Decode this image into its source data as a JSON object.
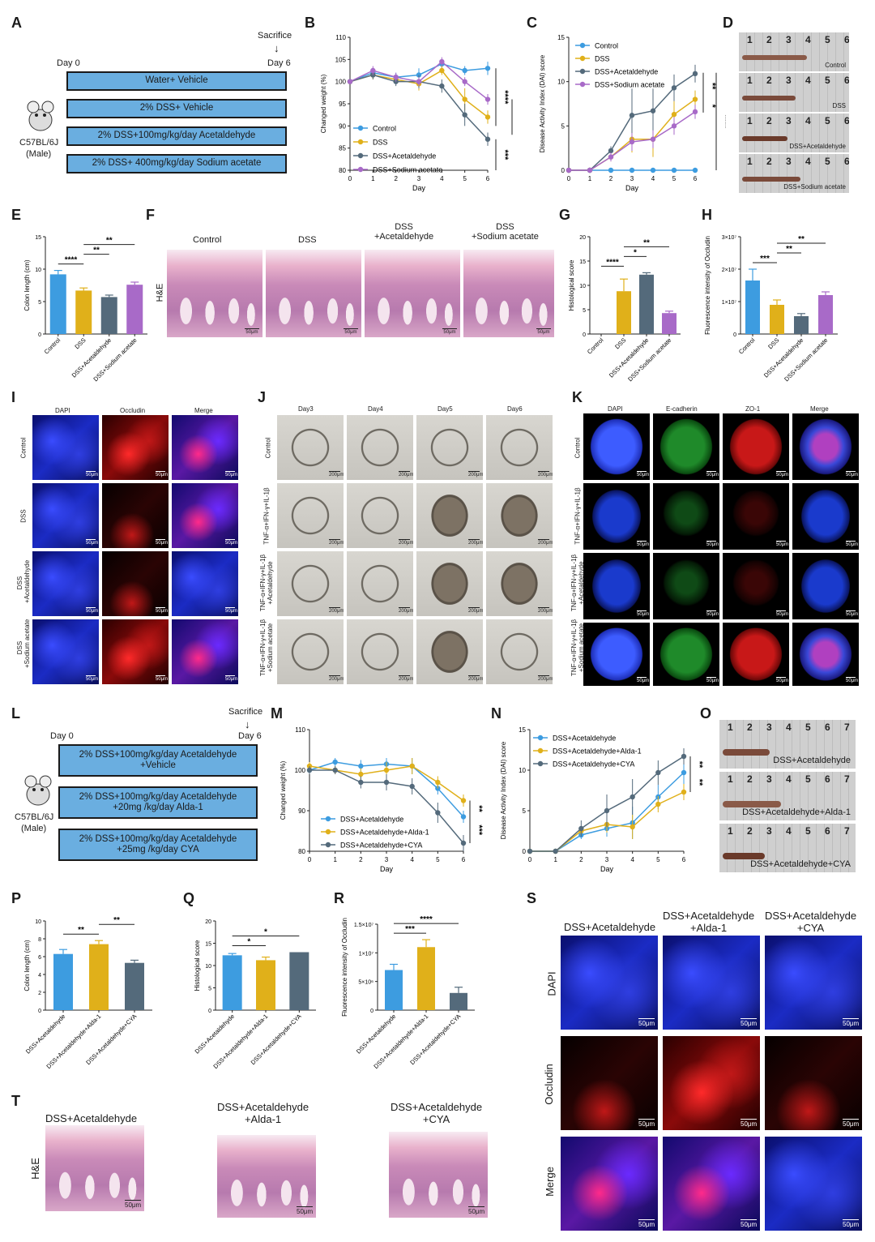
{
  "panels": {
    "A": {
      "letter": "A",
      "sacrifice": "Sacrifice",
      "day0": "Day 0",
      "day6": "Day 6",
      "mouse": "C57BL/6J",
      "sex": "(Male)",
      "groups": [
        "Water+ Vehicle",
        "2% DSS+ Vehicle",
        "2% DSS+100mg/kg/day Acetaldehyde",
        "2% DSS+ 400mg/kg/day Sodium acetate"
      ]
    },
    "B": {
      "letter": "B"
    },
    "C": {
      "letter": "C"
    },
    "D": {
      "letter": "D",
      "ruler": "1 2 3 4 5 6 7 8 9 10 1",
      "labels": [
        "Control",
        "DSS",
        "DSS+Acetaldehyde",
        "DSS+Sodium acetate"
      ]
    },
    "E": {
      "letter": "E"
    },
    "F": {
      "letter": "F",
      "side": "H&E",
      "cols": [
        "Control",
        "DSS",
        "DSS\n+Acetaldehyde",
        "DSS\n+Sodium acetate"
      ],
      "scale": "50μm"
    },
    "G": {
      "letter": "G"
    },
    "H": {
      "letter": "H"
    },
    "I": {
      "letter": "I",
      "cols": [
        "DAPI",
        "Occludin",
        "Merge"
      ],
      "rows": [
        "Control",
        "DSS",
        "DSS\n+Acetaldehyde",
        "DSS\n+Sodium acetate"
      ],
      "scale": "50μm"
    },
    "J": {
      "letter": "J",
      "cols": [
        "Day3",
        "Day4",
        "Day5",
        "Day6"
      ],
      "rows": [
        "Control",
        "TNF-α+IFN-γ+IL-1β",
        "TNF-α+IFN-γ+IL-1β\n+Acetaldehyde",
        "TNF-α+IFN-γ+IL-1β\n+Sodium acetate"
      ],
      "scale": "200μm"
    },
    "K": {
      "letter": "K",
      "cols": [
        "DAPI",
        "E-cadherin",
        "ZO-1",
        "Merge"
      ],
      "rows": [
        "Control",
        "TNF-α+IFN-γ+IL-1β",
        "TNF-α+IFN-γ+IL-1β\n+Acetaldehyde",
        "TNF-α+IFN-γ+IL-1β\n+Sodium acetate"
      ],
      "scale": "50μm"
    },
    "L": {
      "letter": "L",
      "sacrifice": "Sacrifice",
      "day0": "Day 0",
      "day6": "Day 6",
      "mouse": "C57BL/6J",
      "sex": "(Male)",
      "groups": [
        "2% DSS+100mg/kg/day Acetaldehyde\n+Vehicle",
        "2% DSS+100mg/kg/day Acetaldehyde\n+20mg /kg/day Alda-1",
        "2% DSS+100mg/kg/day Acetaldehyde\n+25mg /kg/day CYA"
      ]
    },
    "M": {
      "letter": "M"
    },
    "N": {
      "letter": "N"
    },
    "O": {
      "letter": "O",
      "ruler": "1 2 3 4 5 6 7 8 9 10 1",
      "labels": [
        "DSS+Acetaldehyde",
        "DSS+Acetaldehyde+Alda-1",
        "DSS+Acetaldehyde+CYA"
      ]
    },
    "P": {
      "letter": "P"
    },
    "Q": {
      "letter": "Q"
    },
    "R": {
      "letter": "R"
    },
    "S": {
      "letter": "S",
      "cols": [
        "DSS+Acetaldehyde",
        "DSS+Acetaldehyde\n+Alda-1",
        "DSS+Acetaldehyde\n+CYA"
      ],
      "rows": [
        "DAPI",
        "Occludin",
        "Merge"
      ],
      "scale": "50μm"
    },
    "T": {
      "letter": "T",
      "side": "H&E",
      "cols": [
        "DSS+Acetaldehyde",
        "DSS+Acetaldehyde\n+Alda-1",
        "DSS+Acetaldehyde\n+CYA"
      ],
      "scale": "50μm"
    }
  },
  "colors": {
    "control": "#3d9ce0",
    "dss": "#e0b01a",
    "acet": "#546a7b",
    "sod": "#a86ac8"
  },
  "chart_data": [
    {
      "id": "B",
      "type": "line",
      "ylabel": "Changed weight (%)",
      "xlabel": "Day",
      "x": [
        0,
        1,
        2,
        3,
        4,
        5,
        6
      ],
      "ylim": [
        80,
        110
      ],
      "yticks": [
        80,
        85,
        90,
        95,
        100,
        105,
        110
      ],
      "series": [
        {
          "name": "Control",
          "color": "#3d9ce0",
          "values": [
            100,
            102,
            101,
            101.5,
            104,
            102.5,
            103
          ],
          "err": [
            0,
            1,
            1,
            1.5,
            1,
            1,
            1.5
          ]
        },
        {
          "name": "DSS",
          "color": "#e0b01a",
          "values": [
            100,
            101.5,
            100.5,
            99.5,
            102.5,
            96,
            92
          ],
          "err": [
            0,
            1,
            1,
            1.5,
            1,
            2.5,
            1.5
          ]
        },
        {
          "name": "DSS+Acetaldehyde",
          "color": "#546a7b",
          "values": [
            100,
            101.5,
            100,
            100,
            99,
            92.5,
            87
          ],
          "err": [
            0,
            1,
            1,
            1.5,
            1.5,
            2.5,
            1.5
          ]
        },
        {
          "name": "DSS+Sodium acetate",
          "color": "#a86ac8",
          "values": [
            100,
            102.5,
            101,
            100,
            104.5,
            100,
            96
          ],
          "err": [
            0,
            1,
            1,
            1,
            1,
            1,
            1.2
          ]
        }
      ],
      "annotations": [
        "****",
        "***",
        "***"
      ]
    },
    {
      "id": "C",
      "type": "line",
      "ylabel": "Disease Activity Index (DAI) score",
      "xlabel": "Day",
      "x": [
        0,
        1,
        2,
        3,
        4,
        5,
        6
      ],
      "ylim": [
        0,
        15
      ],
      "yticks": [
        0,
        5,
        10,
        15
      ],
      "series": [
        {
          "name": "Control",
          "color": "#3d9ce0",
          "values": [
            0,
            0,
            0,
            0,
            0,
            0,
            0
          ],
          "err": [
            0,
            0,
            0,
            0,
            0,
            0,
            0
          ]
        },
        {
          "name": "DSS",
          "color": "#e0b01a",
          "values": [
            0,
            0,
            1.5,
            3.5,
            3.5,
            6.3,
            8
          ],
          "err": [
            0,
            0,
            0.5,
            1.5,
            2,
            1.5,
            1
          ]
        },
        {
          "name": "DSS+Acetaldehyde",
          "color": "#546a7b",
          "values": [
            0,
            0,
            2.2,
            6.2,
            6.7,
            9.3,
            10.9
          ],
          "err": [
            0,
            0,
            0.5,
            3,
            2.5,
            1.5,
            1
          ]
        },
        {
          "name": "DSS+Sodium acetate",
          "color": "#a86ac8",
          "values": [
            0,
            0,
            1.5,
            3.2,
            3.5,
            5,
            6.6
          ],
          "err": [
            0,
            0,
            0.5,
            1,
            1,
            1,
            0.8
          ]
        }
      ],
      "annotations": [
        "**",
        "*",
        "****"
      ]
    },
    {
      "id": "E",
      "type": "bar",
      "ylabel": "Colon length (cm)",
      "categories": [
        "Control",
        "DSS",
        "DSS+Acetaldehyde",
        "DSS+Sodium acetate"
      ],
      "values": [
        9.2,
        6.7,
        5.7,
        7.6
      ],
      "err": [
        0.6,
        0.4,
        0.3,
        0.4
      ],
      "ylim": [
        0,
        15
      ],
      "yticks": [
        0,
        5,
        10,
        15
      ],
      "colors": [
        "#3d9ce0",
        "#e0b01a",
        "#546a7b",
        "#a86ac8"
      ],
      "annotations": [
        "****",
        "**",
        "**"
      ]
    },
    {
      "id": "G",
      "type": "bar",
      "ylabel": "Histological score",
      "categories": [
        "Control",
        "DSS",
        "DSS+Acetaldehyde",
        "DSS+Sodium acetate"
      ],
      "values": [
        0,
        8.8,
        12.2,
        4.3
      ],
      "err": [
        0,
        2.5,
        0.4,
        0.4
      ],
      "ylim": [
        0,
        20
      ],
      "yticks": [
        0,
        5,
        10,
        15,
        20
      ],
      "colors": [
        "#3d9ce0",
        "#e0b01a",
        "#546a7b",
        "#a86ac8"
      ],
      "annotations": [
        "****",
        "*",
        "**"
      ]
    },
    {
      "id": "H",
      "type": "bar",
      "ylabel": "Fluorescence intensity of Occludin",
      "categories": [
        "Control",
        "DSS",
        "DSS+Acetaldehyde",
        "DSS+Sodium acetate"
      ],
      "values": [
        1.65,
        0.9,
        0.55,
        1.2
      ],
      "err": [
        0.35,
        0.15,
        0.08,
        0.1
      ],
      "ylim": [
        0,
        3
      ],
      "yticks": [
        0,
        1,
        2,
        3
      ],
      "ytick_labels": [
        "0",
        "1×10⁷",
        "2×10⁷",
        "3×10⁷"
      ],
      "colors": [
        "#3d9ce0",
        "#e0b01a",
        "#546a7b",
        "#a86ac8"
      ],
      "annotations": [
        "***",
        "**",
        "**"
      ]
    },
    {
      "id": "M",
      "type": "line",
      "ylabel": "Changed weight (%)",
      "xlabel": "Day",
      "x": [
        0,
        1,
        2,
        3,
        4,
        5,
        6
      ],
      "ylim": [
        80,
        110
      ],
      "yticks": [
        80,
        90,
        100,
        110
      ],
      "series": [
        {
          "name": "DSS+Acetaldehyde",
          "color": "#3d9ce0",
          "values": [
            100,
            102,
            101,
            101.5,
            101,
            95.5,
            88.5
          ],
          "err": [
            1,
            1,
            1.5,
            1.5,
            2,
            1.5,
            1.5
          ]
        },
        {
          "name": "DSS+Acetaldehyde+Alda-1",
          "color": "#e0b01a",
          "values": [
            101,
            100,
            99,
            100,
            101,
            97,
            92.5
          ],
          "err": [
            1,
            1,
            1.5,
            2,
            2,
            1.5,
            1.5
          ]
        },
        {
          "name": "DSS+Acetaldehyde+CYA",
          "color": "#546a7b",
          "values": [
            100,
            100,
            97,
            97,
            96,
            89.5,
            82
          ],
          "err": [
            1,
            1,
            1.5,
            2,
            2,
            2.5,
            2
          ]
        }
      ],
      "annotations": [
        "**",
        "***"
      ]
    },
    {
      "id": "N",
      "type": "line",
      "ylabel": "Disease Activity Index (DAI) score",
      "xlabel": "Day",
      "x": [
        0,
        1,
        2,
        3,
        4,
        5,
        6
      ],
      "ylim": [
        0,
        15
      ],
      "yticks": [
        0,
        5,
        10,
        15
      ],
      "series": [
        {
          "name": "DSS+Acetaldehyde",
          "color": "#3d9ce0",
          "values": [
            0,
            0,
            2,
            2.8,
            3.5,
            6.7,
            9.7
          ],
          "err": [
            0,
            0,
            0.5,
            1,
            2,
            1.5,
            1.5
          ]
        },
        {
          "name": "DSS+Acetaldehyde+Alda-1",
          "color": "#e0b01a",
          "values": [
            0,
            0,
            2.5,
            3.3,
            3,
            5.8,
            7.3
          ],
          "err": [
            0,
            0,
            0.5,
            1,
            1.5,
            1,
            1
          ]
        },
        {
          "name": "DSS+Acetaldehyde+CYA",
          "color": "#546a7b",
          "values": [
            0,
            0,
            2.8,
            5,
            6.7,
            9.7,
            11.7
          ],
          "err": [
            0,
            0,
            1,
            2,
            2.2,
            1.5,
            1
          ]
        }
      ],
      "annotations": [
        "**",
        "**"
      ]
    },
    {
      "id": "P",
      "type": "bar",
      "ylabel": "Colon length (cm)",
      "categories": [
        "DSS+Acetaldehyde",
        "DSS+Acetaldehyde+Alda-1",
        "DSS+Acetaldehyde+CYA"
      ],
      "values": [
        6.3,
        7.4,
        5.3
      ],
      "err": [
        0.5,
        0.4,
        0.3
      ],
      "ylim": [
        0,
        10
      ],
      "yticks": [
        0,
        2,
        4,
        6,
        8,
        10
      ],
      "colors": [
        "#3d9ce0",
        "#e0b01a",
        "#546a7b"
      ],
      "annotations": [
        "**",
        "**"
      ]
    },
    {
      "id": "Q",
      "type": "bar",
      "ylabel": "Histological score",
      "categories": [
        "DSS+Acetaldehyde",
        "DSS+Acetaldehyde+Alda-1",
        "DSS+Acetaldehyde+CYA"
      ],
      "values": [
        12.3,
        11.2,
        13
      ],
      "err": [
        0.4,
        0.7,
        0
      ],
      "ylim": [
        0,
        20
      ],
      "yticks": [
        0,
        5,
        10,
        15,
        20
      ],
      "colors": [
        "#3d9ce0",
        "#e0b01a",
        "#546a7b"
      ],
      "annotations": [
        "*",
        "*"
      ]
    },
    {
      "id": "R",
      "type": "bar",
      "ylabel": "Fluorescence intensity of Occludin",
      "categories": [
        "DSS+Acetaldehyde",
        "DSS+Acetaldehyde+Alda-1",
        "DSS+Acetaldehyde+CYA"
      ],
      "values": [
        0.7,
        1.1,
        0.3
      ],
      "err": [
        0.1,
        0.13,
        0.1
      ],
      "ylim": [
        0,
        1.5
      ],
      "yticks": [
        0,
        0.5,
        1,
        1.5
      ],
      "ytick_labels": [
        "0",
        "5×10⁶",
        "1×10⁷",
        "1.5×10⁷"
      ],
      "colors": [
        "#3d9ce0",
        "#e0b01a",
        "#546a7b"
      ],
      "annotations": [
        "***",
        "****"
      ]
    }
  ]
}
